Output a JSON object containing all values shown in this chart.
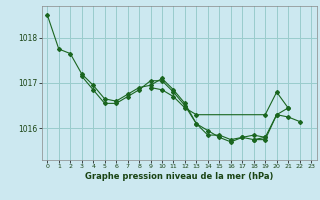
{
  "title": "Graphe pression niveau de la mer (hPa)",
  "background_color": "#cce8f0",
  "grid_color": "#99cccc",
  "line_color": "#1a6620",
  "xlim": [
    -0.5,
    23.5
  ],
  "ylim": [
    1015.3,
    1018.7
  ],
  "yticks": [
    1016,
    1017,
    1018
  ],
  "xticks": [
    0,
    1,
    2,
    3,
    4,
    5,
    6,
    7,
    8,
    9,
    10,
    11,
    12,
    13,
    14,
    15,
    16,
    17,
    18,
    19,
    20,
    21,
    22,
    23
  ],
  "series": [
    [
      1018.5,
      1017.75,
      1017.65,
      1017.2,
      1016.95,
      1016.65,
      1016.6,
      1016.75,
      1016.9,
      1016.95,
      1017.1,
      1016.85,
      1016.55,
      1016.1,
      1015.85,
      1015.85,
      1015.75,
      1015.8,
      1015.85,
      1015.8,
      1016.3,
      1016.25,
      1016.15,
      null
    ],
    [
      null,
      null,
      null,
      1017.15,
      1016.85,
      1016.55,
      1016.55,
      1016.7,
      1016.85,
      1017.05,
      1017.05,
      1016.8,
      1016.5,
      1016.1,
      1015.95,
      1015.8,
      1015.7,
      1015.8,
      1015.75,
      1015.8,
      null,
      null,
      null,
      null
    ],
    [
      null,
      null,
      null,
      null,
      null,
      null,
      null,
      null,
      null,
      1016.9,
      1016.85,
      1016.7,
      1016.45,
      1016.3,
      null,
      null,
      null,
      null,
      null,
      1016.3,
      1016.8,
      1016.45,
      null,
      null
    ],
    [
      null,
      null,
      null,
      null,
      null,
      null,
      null,
      null,
      null,
      null,
      null,
      null,
      null,
      null,
      null,
      null,
      null,
      null,
      1015.75,
      1015.75,
      1016.3,
      1016.45,
      null,
      null
    ]
  ]
}
